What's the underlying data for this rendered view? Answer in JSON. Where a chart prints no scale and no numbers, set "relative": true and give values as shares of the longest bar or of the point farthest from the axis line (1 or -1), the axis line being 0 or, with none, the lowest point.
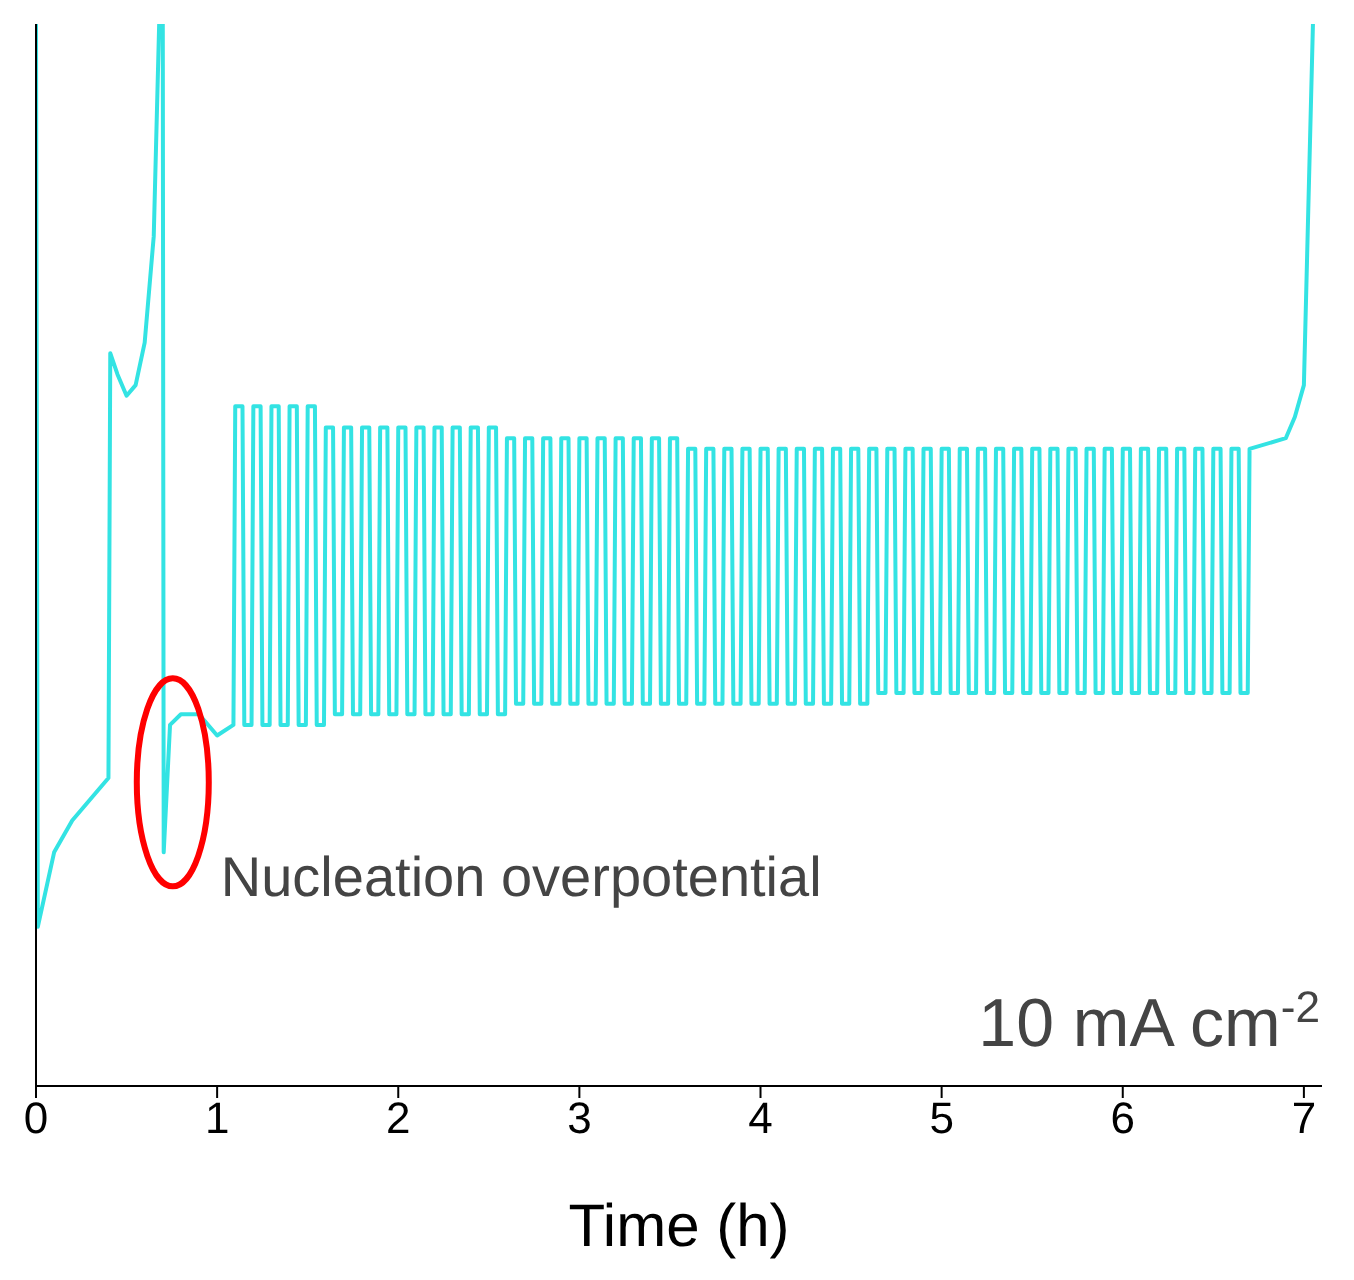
{
  "chart_data": {
    "type": "line",
    "relative": true,
    "xlabel": "Time (h)",
    "xlim": [
      0,
      7.1
    ],
    "xticks": [
      0,
      1,
      2,
      3,
      4,
      5,
      6,
      7
    ],
    "color": "#33e3e3",
    "annotations": [
      {
        "text": "Nucleation overpotential",
        "x": 0.7,
        "y": 0.22
      },
      "10 mA cm$^{-2}$"
    ],
    "x": [
      0,
      0.01,
      0.1,
      0.2,
      0.3,
      0.4,
      0.41,
      0.45,
      0.5,
      0.55,
      0.6,
      0.65,
      0.68,
      0.7,
      0.705,
      0.74,
      0.8,
      0.9,
      1.0,
      1.09,
      1.1,
      1.14,
      1.15,
      1.19,
      1.2,
      1.24,
      1.25,
      1.29,
      1.3,
      1.34,
      1.35,
      1.39,
      1.4,
      1.44,
      1.45,
      1.49,
      1.5,
      1.54,
      1.55,
      1.59,
      1.6,
      1.64,
      1.65,
      1.69,
      1.7,
      1.74,
      1.75,
      1.79,
      1.8,
      1.84,
      1.85,
      1.89,
      1.9,
      1.94,
      1.95,
      1.99,
      2.0,
      2.04,
      2.05,
      2.09,
      2.1,
      2.14,
      2.15,
      2.19,
      2.2,
      2.24,
      2.25,
      2.29,
      2.3,
      2.34,
      2.35,
      2.39,
      2.4,
      2.44,
      2.45,
      2.49,
      2.5,
      2.54,
      2.55,
      2.59,
      2.6,
      2.64,
      2.65,
      2.69,
      2.7,
      2.74,
      2.75,
      2.79,
      2.8,
      2.84,
      2.85,
      2.89,
      2.9,
      2.94,
      2.95,
      2.99,
      3.0,
      3.04,
      3.05,
      3.09,
      3.1,
      3.14,
      3.15,
      3.19,
      3.2,
      3.24,
      3.25,
      3.29,
      3.3,
      3.34,
      3.35,
      3.39,
      3.4,
      3.44,
      3.45,
      3.49,
      3.5,
      3.54,
      3.55,
      3.59,
      3.6,
      3.64,
      3.65,
      3.69,
      3.7,
      3.74,
      3.75,
      3.79,
      3.8,
      3.84,
      3.85,
      3.89,
      3.9,
      3.94,
      3.95,
      3.99,
      4.0,
      4.04,
      4.05,
      4.09,
      4.1,
      4.14,
      4.15,
      4.19,
      4.2,
      4.24,
      4.25,
      4.29,
      4.3,
      4.34,
      4.35,
      4.39,
      4.4,
      4.44,
      4.45,
      4.49,
      4.5,
      4.54,
      4.55,
      4.59,
      4.6,
      4.64,
      4.65,
      4.69,
      4.7,
      4.74,
      4.75,
      4.79,
      4.8,
      4.84,
      4.85,
      4.89,
      4.9,
      4.94,
      4.95,
      4.99,
      5.0,
      5.04,
      5.05,
      5.09,
      5.1,
      5.14,
      5.15,
      5.19,
      5.2,
      5.24,
      5.25,
      5.29,
      5.3,
      5.34,
      5.35,
      5.39,
      5.4,
      5.44,
      5.45,
      5.49,
      5.5,
      5.54,
      5.55,
      5.59,
      5.6,
      5.64,
      5.65,
      5.69,
      5.7,
      5.74,
      5.75,
      5.79,
      5.8,
      5.84,
      5.85,
      5.89,
      5.9,
      5.94,
      5.95,
      5.99,
      6.0,
      6.04,
      6.05,
      6.09,
      6.1,
      6.14,
      6.15,
      6.19,
      6.2,
      6.24,
      6.25,
      6.29,
      6.3,
      6.34,
      6.35,
      6.39,
      6.4,
      6.44,
      6.45,
      6.49,
      6.5,
      6.54,
      6.55,
      6.59,
      6.6,
      6.64,
      6.65,
      6.69,
      6.7,
      6.9,
      6.95,
      7.0,
      7.05
    ],
    "values": [
      1,
      0.15,
      0.22,
      0.25,
      0.27,
      0.29,
      0.69,
      0.67,
      0.65,
      0.66,
      0.7,
      0.8,
      1,
      1,
      0.22,
      0.34,
      0.35,
      0.35,
      0.33,
      0.34,
      0.64,
      0.64,
      0.34,
      0.34,
      0.64,
      0.64,
      0.34,
      0.34,
      0.64,
      0.64,
      0.34,
      0.34,
      0.64,
      0.64,
      0.34,
      0.34,
      0.64,
      0.64,
      0.34,
      0.34,
      0.62,
      0.62,
      0.35,
      0.35,
      0.62,
      0.62,
      0.35,
      0.35,
      0.62,
      0.62,
      0.35,
      0.35,
      0.62,
      0.62,
      0.35,
      0.35,
      0.62,
      0.62,
      0.35,
      0.35,
      0.62,
      0.62,
      0.35,
      0.35,
      0.62,
      0.62,
      0.35,
      0.35,
      0.62,
      0.62,
      0.35,
      0.35,
      0.62,
      0.62,
      0.35,
      0.35,
      0.62,
      0.62,
      0.35,
      0.35,
      0.61,
      0.61,
      0.36,
      0.36,
      0.61,
      0.61,
      0.36,
      0.36,
      0.61,
      0.61,
      0.36,
      0.36,
      0.61,
      0.61,
      0.36,
      0.36,
      0.61,
      0.61,
      0.36,
      0.36,
      0.61,
      0.61,
      0.36,
      0.36,
      0.61,
      0.61,
      0.36,
      0.36,
      0.61,
      0.61,
      0.36,
      0.36,
      0.61,
      0.61,
      0.36,
      0.36,
      0.61,
      0.61,
      0.36,
      0.36,
      0.6,
      0.6,
      0.36,
      0.36,
      0.6,
      0.6,
      0.36,
      0.36,
      0.6,
      0.6,
      0.36,
      0.36,
      0.6,
      0.6,
      0.36,
      0.36,
      0.6,
      0.6,
      0.36,
      0.36,
      0.6,
      0.6,
      0.36,
      0.36,
      0.6,
      0.6,
      0.36,
      0.36,
      0.6,
      0.6,
      0.36,
      0.36,
      0.6,
      0.6,
      0.36,
      0.36,
      0.6,
      0.6,
      0.36,
      0.36,
      0.6,
      0.6,
      0.37,
      0.37,
      0.6,
      0.6,
      0.37,
      0.37,
      0.6,
      0.6,
      0.37,
      0.37,
      0.6,
      0.6,
      0.37,
      0.37,
      0.6,
      0.6,
      0.37,
      0.37,
      0.6,
      0.6,
      0.37,
      0.37,
      0.6,
      0.6,
      0.37,
      0.37,
      0.6,
      0.6,
      0.37,
      0.37,
      0.6,
      0.6,
      0.37,
      0.37,
      0.6,
      0.6,
      0.37,
      0.37,
      0.6,
      0.6,
      0.37,
      0.37,
      0.6,
      0.6,
      0.37,
      0.37,
      0.6,
      0.6,
      0.37,
      0.37,
      0.6,
      0.6,
      0.37,
      0.37,
      0.6,
      0.6,
      0.37,
      0.37,
      0.6,
      0.6,
      0.37,
      0.37,
      0.6,
      0.6,
      0.37,
      0.37,
      0.6,
      0.6,
      0.37,
      0.37,
      0.6,
      0.6,
      0.37,
      0.37,
      0.6,
      0.6,
      0.37,
      0.37,
      0.6,
      0.6,
      0.37,
      0.37,
      0.6,
      0.61,
      0.63,
      0.66,
      1
    ]
  }
}
